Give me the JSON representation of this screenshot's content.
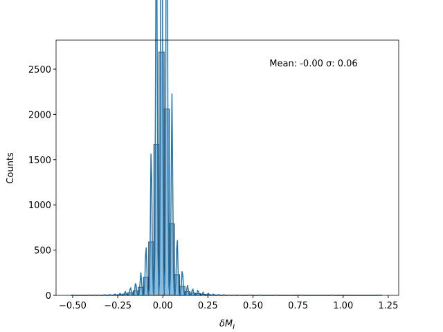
{
  "chart_data": {
    "type": "histogram",
    "annotation": "Mean: -0.00 σ: 0.06",
    "xlabel": {
      "text": "δM",
      "subscript": "I"
    },
    "ylabel": "Counts",
    "color": "#1f77b4",
    "kde": true,
    "bins": [
      -0.51,
      -0.48125,
      -0.4525,
      -0.42375,
      -0.395,
      -0.36625,
      -0.3375,
      -0.30875,
      -0.28,
      -0.25125,
      -0.2225,
      -0.19375,
      -0.165,
      -0.13625,
      -0.1075,
      -0.07875,
      -0.05,
      -0.02125,
      0.0075,
      0.03625,
      0.065,
      0.09375,
      0.1225,
      0.15125,
      0.18,
      0.20875,
      0.2375,
      0.26625,
      0.295,
      0.32375,
      0.3525,
      0.38125,
      0.41,
      0.43875,
      0.4675,
      0.49625,
      0.525,
      0.55375,
      0.5825,
      0.61125,
      0.64,
      0.66875,
      0.6975,
      0.72625,
      0.755,
      0.78375,
      0.8125,
      0.84125,
      0.87,
      0.89875,
      0.9275,
      0.95625,
      0.985,
      1.01375,
      1.0425,
      1.07125,
      1.1,
      1.12875,
      1.1575,
      1.18625,
      1.215
    ],
    "counts": [
      1,
      0,
      0,
      1,
      1,
      1,
      2,
      3,
      5,
      8,
      15,
      30,
      50,
      90,
      200,
      590,
      1670,
      2690,
      2060,
      790,
      230,
      100,
      40,
      25,
      20,
      12,
      8,
      5,
      3,
      2,
      1,
      1,
      1,
      0,
      1,
      0,
      1,
      0,
      0,
      1,
      0,
      0,
      0,
      0,
      1,
      0,
      0,
      0,
      0,
      0,
      1,
      0,
      0,
      0,
      0,
      0,
      0,
      0,
      0,
      1
    ],
    "xlim": [
      -0.592,
      1.308
    ],
    "ylim": [
      0,
      2821
    ],
    "xticks": [
      {
        "value": -0.5,
        "label": "−0.50"
      },
      {
        "value": -0.25,
        "label": "−0.25"
      },
      {
        "value": 0,
        "label": "0.00"
      },
      {
        "value": 0.25,
        "label": "0.25"
      },
      {
        "value": 0.5,
        "label": "0.50"
      },
      {
        "value": 0.75,
        "label": "0.75"
      },
      {
        "value": 1,
        "label": "1.00"
      },
      {
        "value": 1.25,
        "label": "1.25"
      }
    ],
    "yticks": [
      0,
      500,
      1000,
      1500,
      2000,
      2500
    ]
  }
}
